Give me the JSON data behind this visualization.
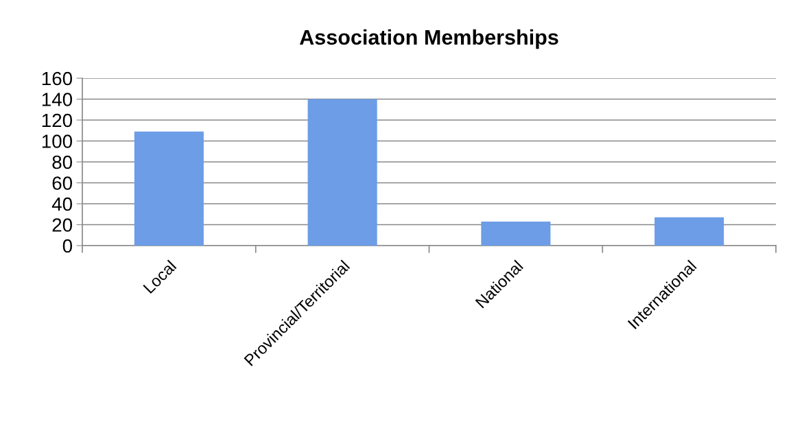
{
  "chart_data": {
    "type": "bar",
    "title": "Association Memberships",
    "categories": [
      "Local",
      "Provincial/Territorial",
      "National",
      "International"
    ],
    "values": [
      109,
      140,
      23,
      27
    ],
    "color": "#6c9de6",
    "ylim": [
      0,
      160
    ],
    "yticks": [
      0,
      20,
      40,
      60,
      80,
      100,
      120,
      140,
      160
    ],
    "grid": "y"
  }
}
